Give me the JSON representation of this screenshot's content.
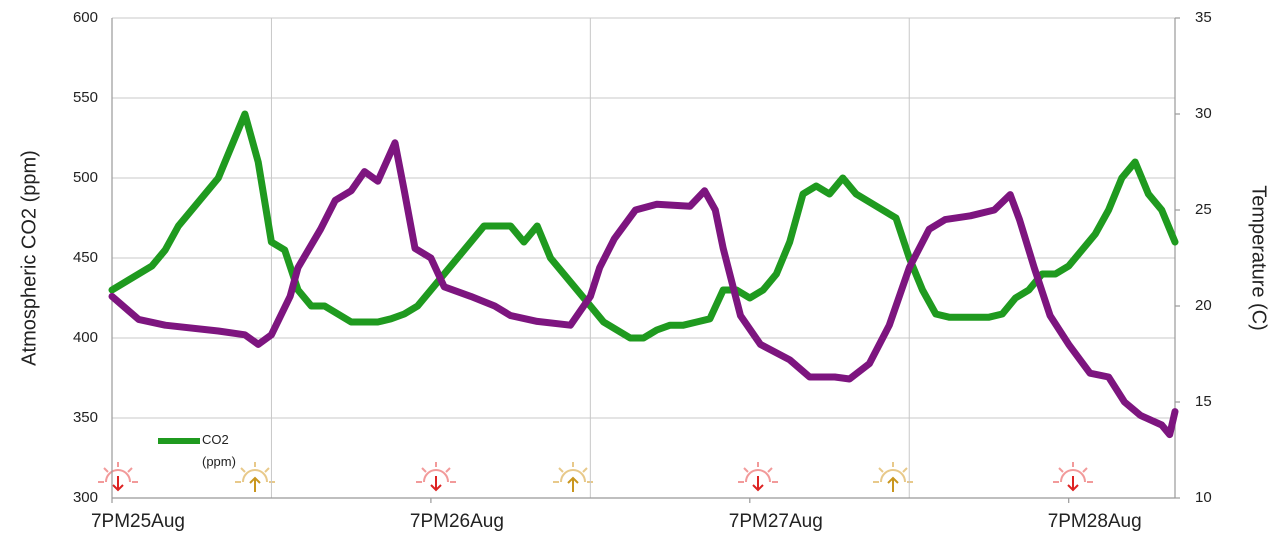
{
  "chart_data": {
    "type": "line",
    "ylabel": "Atmospheric CO2 (ppm)",
    "y2label": "Temperature (C)",
    "xlim": [
      0,
      80
    ],
    "xticks": [
      {
        "value": 0,
        "label": "7PM25Aug"
      },
      {
        "value": 24,
        "label": "7PM26Aug"
      },
      {
        "value": 48,
        "label": "7PM27Aug"
      },
      {
        "value": 72,
        "label": "7PM28Aug"
      }
    ],
    "xminor_ticks": [
      12,
      36,
      60
    ],
    "ylim": [
      300,
      600
    ],
    "yticks": [
      300,
      350,
      400,
      450,
      500,
      550,
      600
    ],
    "y2lim": [
      10,
      35
    ],
    "y2ticks": [
      10,
      15,
      20,
      25,
      30,
      35
    ],
    "grid": true,
    "series": [
      {
        "name": "CO2 (ppm)",
        "color": "#1f9a1f",
        "x": [
          0,
          1,
          2,
          3,
          4,
          5,
          6,
          7,
          8,
          9,
          10,
          11,
          12,
          13,
          14,
          15,
          16,
          17,
          18,
          19,
          20,
          21,
          22,
          23,
          24,
          25,
          26,
          27,
          28,
          29,
          30,
          31,
          32,
          33,
          34,
          35,
          36,
          37,
          38,
          39,
          40,
          41,
          42,
          43,
          44,
          45,
          46,
          47,
          48,
          49,
          50,
          51,
          52,
          53,
          54,
          55,
          56,
          57,
          58,
          59,
          60,
          61,
          62,
          63,
          64,
          65,
          66,
          67,
          68,
          69,
          70,
          71,
          72,
          73,
          74,
          75,
          76,
          77,
          78,
          79,
          80
        ],
        "values": [
          430,
          435,
          440,
          445,
          455,
          470,
          480,
          490,
          500,
          520,
          540,
          510,
          460,
          455,
          430,
          420,
          420,
          415,
          410,
          410,
          410,
          412,
          415,
          420,
          430,
          440,
          450,
          460,
          470,
          470,
          470,
          460,
          470,
          450,
          440,
          430,
          420,
          410,
          405,
          400,
          400,
          405,
          408,
          408,
          410,
          412,
          430,
          430,
          425,
          430,
          440,
          460,
          490,
          495,
          490,
          500,
          490,
          485,
          480,
          475,
          450,
          430,
          415,
          413,
          413,
          413,
          413,
          415,
          425,
          430,
          440,
          440,
          445,
          455,
          465,
          480,
          500,
          510,
          490,
          480,
          460
        ]
      },
      {
        "color": "#7d157f",
        "axis": "y2",
        "x": [
          0,
          2,
          4,
          8,
          10,
          11,
          12,
          13.4,
          14,
          15.7,
          16.8,
          18,
          19,
          20,
          21.3,
          22,
          22.8,
          24,
          25,
          27,
          28.8,
          30,
          32,
          34.5,
          36,
          36.7,
          37.8,
          39.4,
          41,
          43.5,
          44.6,
          45.4,
          46,
          47.3,
          48.8,
          51,
          52.5,
          54.4,
          55.5,
          57,
          58.5,
          60,
          61.5,
          62.7,
          64.6,
          66.4,
          67.6,
          68.3,
          69.4,
          70.6,
          72,
          73.6,
          75,
          76.2,
          77.4,
          79,
          79.6,
          80
        ],
        "values": [
          20.5,
          19.3,
          19,
          18.7,
          18.5,
          18,
          18.5,
          20.5,
          22,
          24,
          25.5,
          26,
          27,
          26.5,
          28.5,
          26,
          23,
          22.5,
          21,
          20.5,
          20,
          19.5,
          19.2,
          19,
          20.5,
          22,
          23.5,
          25,
          25.3,
          25.2,
          26,
          25,
          23,
          19.5,
          18,
          17.2,
          16.3,
          16.3,
          16.2,
          17,
          19,
          22,
          24,
          24.5,
          24.7,
          25,
          25.8,
          24.5,
          22,
          19.5,
          18,
          16.5,
          16.3,
          15,
          14.3,
          13.8,
          13.3,
          14.5
        ]
      }
    ]
  }
}
